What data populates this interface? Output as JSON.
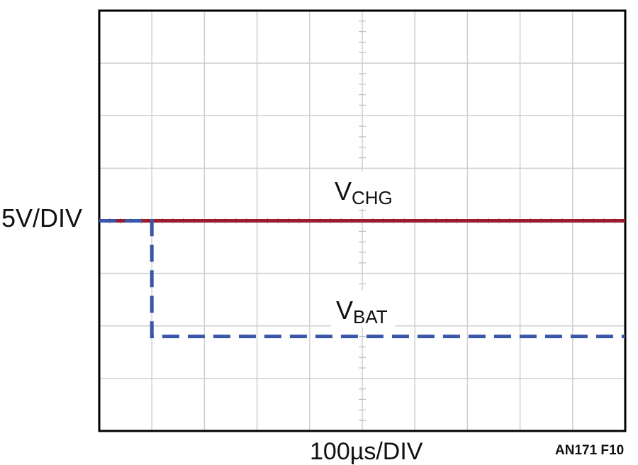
{
  "chart_data": {
    "type": "line",
    "divisions": {
      "x": 10,
      "y": 8
    },
    "x_scale": "100µs/DIV",
    "y_scale": "5V/DIV",
    "xlabel": "100µs/DIV",
    "ylabel": "5V/DIV",
    "figure_id": "AN171 F10",
    "series": [
      {
        "name": "VCHG",
        "label_main": "V",
        "label_sub": "CHG",
        "color": "#9b1b2f",
        "style": "solid",
        "x_div": [
          0,
          10
        ],
        "y_div": [
          4,
          4
        ]
      },
      {
        "name": "VBAT",
        "label_main": "V",
        "label_sub": "BAT",
        "color": "#3a56a8",
        "style": "dashed",
        "x_div": [
          0,
          1,
          1,
          10
        ],
        "y_div": [
          4,
          4,
          1.8,
          1.8
        ]
      }
    ]
  }
}
